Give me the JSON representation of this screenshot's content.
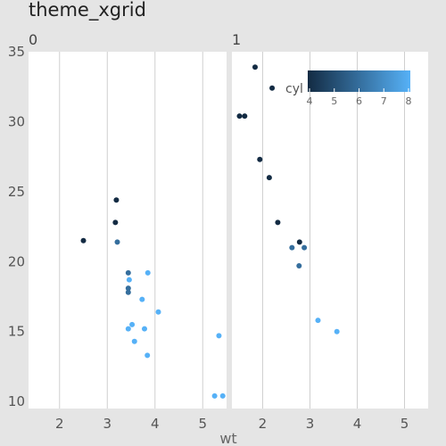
{
  "chart_data": {
    "type": "scatter",
    "title": "theme_xgrid",
    "xlabel": "wt",
    "ylabel": "",
    "facets": [
      "0",
      "1"
    ],
    "xlim": [
      1.35,
      5.5
    ],
    "ylim": [
      9.5,
      35
    ],
    "xticks": [
      2,
      3,
      4,
      5
    ],
    "yticks": [
      10,
      15,
      20,
      25,
      30,
      35
    ],
    "grid": "vertical-major",
    "legend": {
      "title": "cyl",
      "position": "top-right-inside",
      "ticks": [
        4,
        5,
        6,
        7,
        8
      ],
      "range": [
        4,
        8
      ],
      "low_color": "#132B43",
      "high_color": "#56B1F7"
    },
    "panels": [
      {
        "facet": "0",
        "points": [
          {
            "x": 2.5,
            "y": 21.5,
            "cyl": 4
          },
          {
            "x": 3.17,
            "y": 22.8,
            "cyl": 4
          },
          {
            "x": 3.19,
            "y": 24.4,
            "cyl": 4
          },
          {
            "x": 3.21,
            "y": 21.4,
            "cyl": 6
          },
          {
            "x": 3.44,
            "y": 19.2,
            "cyl": 6
          },
          {
            "x": 3.44,
            "y": 17.8,
            "cyl": 6
          },
          {
            "x": 3.44,
            "y": 18.1,
            "cyl": 6
          },
          {
            "x": 3.46,
            "y": 18.7,
            "cyl": 8
          },
          {
            "x": 3.57,
            "y": 14.3,
            "cyl": 8
          },
          {
            "x": 4.07,
            "y": 16.4,
            "cyl": 8
          },
          {
            "x": 3.73,
            "y": 17.3,
            "cyl": 8
          },
          {
            "x": 3.78,
            "y": 15.2,
            "cyl": 8
          },
          {
            "x": 5.25,
            "y": 10.4,
            "cyl": 8
          },
          {
            "x": 5.42,
            "y": 10.4,
            "cyl": 8
          },
          {
            "x": 5.34,
            "y": 14.7,
            "cyl": 8
          },
          {
            "x": 3.52,
            "y": 15.5,
            "cyl": 8
          },
          {
            "x": 3.44,
            "y": 15.2,
            "cyl": 8
          },
          {
            "x": 3.84,
            "y": 13.3,
            "cyl": 8
          },
          {
            "x": 3.85,
            "y": 19.2,
            "cyl": 8
          }
        ]
      },
      {
        "facet": "1",
        "points": [
          {
            "x": 2.62,
            "y": 21.0,
            "cyl": 6
          },
          {
            "x": 2.88,
            "y": 21.0,
            "cyl": 6
          },
          {
            "x": 2.32,
            "y": 22.8,
            "cyl": 4
          },
          {
            "x": 2.2,
            "y": 32.4,
            "cyl": 4
          },
          {
            "x": 1.62,
            "y": 30.4,
            "cyl": 4
          },
          {
            "x": 1.84,
            "y": 33.9,
            "cyl": 4
          },
          {
            "x": 1.94,
            "y": 27.3,
            "cyl": 4
          },
          {
            "x": 2.14,
            "y": 26.0,
            "cyl": 4
          },
          {
            "x": 1.51,
            "y": 30.4,
            "cyl": 4
          },
          {
            "x": 3.17,
            "y": 15.8,
            "cyl": 8
          },
          {
            "x": 2.77,
            "y": 19.7,
            "cyl": 6
          },
          {
            "x": 3.57,
            "y": 15.0,
            "cyl": 8
          },
          {
            "x": 2.78,
            "y": 21.4,
            "cyl": 4
          }
        ]
      }
    ]
  }
}
